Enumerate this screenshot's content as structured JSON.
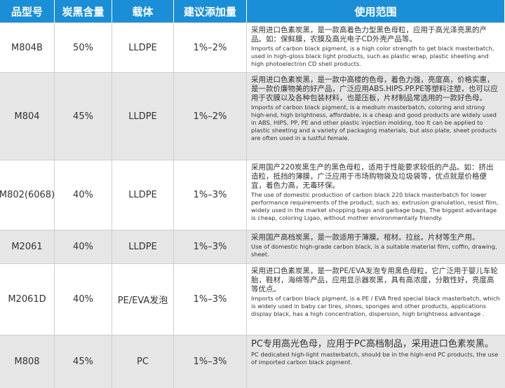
{
  "table": {
    "header": [
      "品型号",
      "炭黑含量",
      "载体",
      "建议添加量",
      "使用范围"
    ],
    "rows": [
      {
        "model": "M804B",
        "content": "50%",
        "carrier": "LLDPE",
        "dosage": "1%–2%",
        "desc_zh": "采用进口色素炭黑，是一款高着色力型黑色母粒，应用于高光泽亮黑的产品。如：保鲜膜，农膜及高光电子CD外壳产品等。",
        "desc_en": "Imports of carbon black pigment, is a high color strength to get black masterbatch, used in high-gloss black light products, such as plastic wrap, plastic sheeting and high photoelectron CD shell products."
      },
      {
        "model": "M804",
        "content": "45%",
        "carrier": "LLDPE",
        "dosage": "1%–2%",
        "desc_zh": "采用进口色素炭黑，是一款中高楼的色母，着色力强，亮度高，价格实惠，是一款价廉物美的好产品，广泛应用ABS.HIPS.PP.PE等塑料注塑，也可以应用于农膜以及各种包装材料，也是压板，片材制品常选用的一款好色母。",
        "desc_en": "Imports of carbon black pigment, is a medium masterbatch, coloring and strong high-end, high brightness, affordable, is a cheap and good products are widely used in ABS, HIPS, PP, PE and other plastic injection molding, too It can be applied to plastic sheeting and a variety of packaging materials, but also plate, sheet products are often used in a lustful female."
      },
      {
        "model": "M802(6068)",
        "content": "40%",
        "carrier": "LLDPE",
        "dosage": "1%–3%",
        "desc_zh": "采用国产220炭黑生产的黑色母粒，适用于性能要求较低的产品。如：挤出造粒，抵挡的薄膜，广泛应用于市场购物袋及垃圾袋等，优点就是价格便宜，着色力高，无毒环保。",
        "desc_en": "The use of domestic production of carbon black 220 black masterbatch for lower performance requirements of the product, such as: extrusion granulation, resist film, widely used in the market shopping bags and garbage bags, The biggest advantage is cheap, coloring Ligao, without mother environmentally friendly."
      },
      {
        "model": "M2061",
        "content": "40%",
        "carrier": "LLDPE",
        "dosage": "1%–3%",
        "desc_zh": "采用国产高档炭黑，是一款适用于薄膜。棺材。拉丝。片材等生产用。",
        "desc_en": "Use of domestic high-grade carbon black, is a suitable material film, coffin, drawing, sheet."
      },
      {
        "model": "M2061D",
        "content": "40%",
        "carrier": "PE/EVA发泡",
        "dosage": "1%–3%",
        "desc_zh": "采用进口色素炭黑，是一款PE/EVA发泡专用黑色母粒，它广泛用于婴儿车轮胎，鞋材，海绵等产品，应用显示器炭黑，具有高浓度，分散性好，亮度高等优点。",
        "desc_en": "Imports of carbon black pigment, is a PE / EVA fired special black masterbatch, which is widely used in baby car tires, shoes, sponges and other products, applications display black, has a high concentration, dispersion, high brightness advantage ."
      },
      {
        "model": "M808",
        "content": "45%",
        "carrier": "PC",
        "dosage": "1%–3%",
        "desc_zh": "PC专用高光色母，应用于PC高档制品，采用进口色素炭黑。",
        "desc_en": "PC dedicated high-light masterbatch, should be in the high-end PC products, the use of imported carbon black pigment."
      }
    ]
  }
}
